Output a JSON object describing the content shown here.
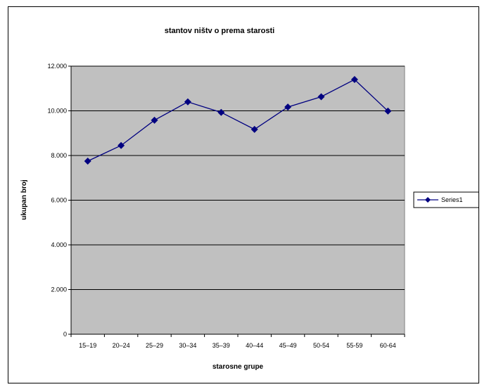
{
  "chart_data": {
    "type": "line",
    "title": "stantov ništv o prema starosti",
    "xlabel": "starosne grupe",
    "ylabel": "ukupan broj",
    "categories": [
      "15–19",
      "20–24",
      "25–29",
      "30–34",
      "35–39",
      "40–44",
      "45–49",
      "50-54",
      "55-59",
      "60-64"
    ],
    "y_tick_labels": [
      "0",
      "2.000",
      "4.000",
      "6.000",
      "8.000",
      "10.000",
      "12.000"
    ],
    "ylim": [
      0,
      12000
    ],
    "y_tick_step": 2000,
    "grid": true,
    "legend_position": "right",
    "plot_background": "#c0c0c0",
    "series": [
      {
        "name": "Series1",
        "color": "#000080",
        "values": [
          7750,
          8450,
          9580,
          10400,
          9930,
          9170,
          10170,
          10630,
          11400,
          9990
        ]
      }
    ]
  }
}
